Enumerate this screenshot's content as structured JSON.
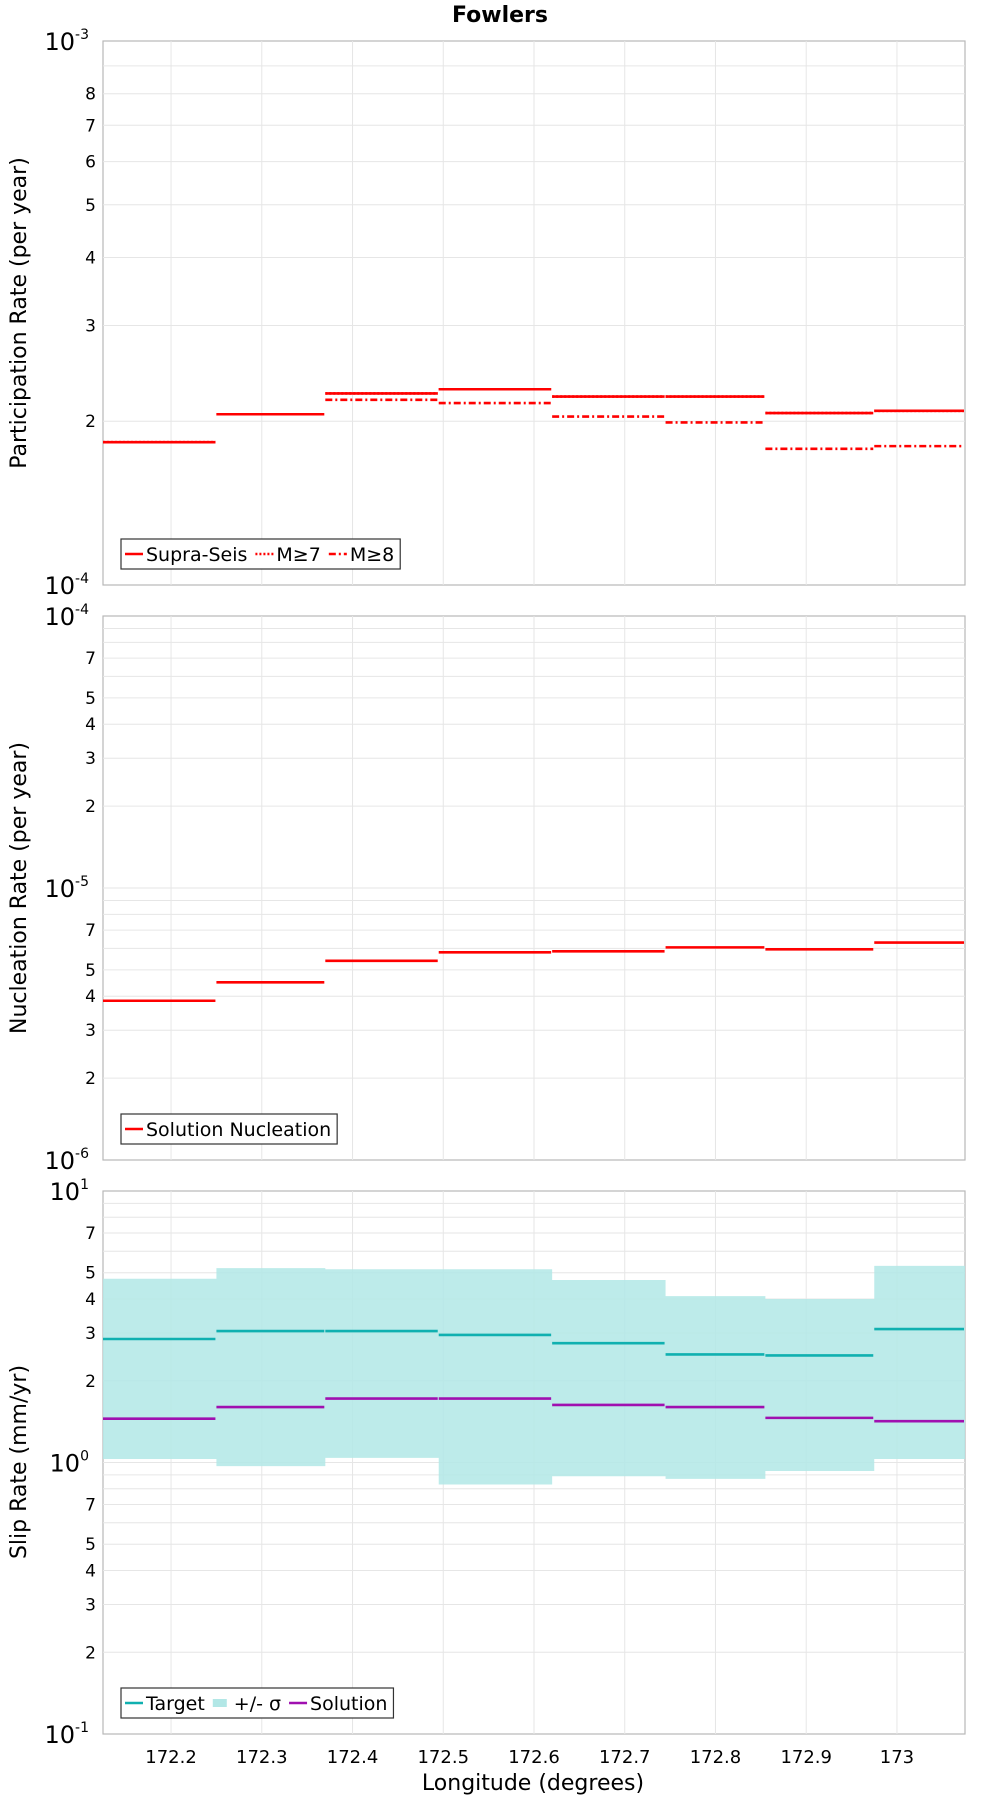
{
  "title": "Fowlers",
  "x_axis": {
    "label": "Longitude (degrees)",
    "ticks": [
      172.2,
      172.3,
      172.4,
      172.5,
      172.6,
      172.7,
      172.8,
      172.9,
      173.0
    ],
    "tick_labels": [
      "172.2",
      "172.3",
      "172.4",
      "172.5",
      "172.6",
      "172.7",
      "172.8",
      "172.9",
      "173"
    ],
    "range": [
      172.125,
      173.075
    ]
  },
  "chart_data": [
    {
      "type": "line",
      "step": true,
      "scale": "log",
      "ylabel": "Participation Rate (per year)",
      "ylim": [
        0.0001,
        0.001
      ],
      "decade_labels": [
        {
          "base": "10",
          "exp": "-4"
        },
        {
          "base": "10",
          "exp": "-3"
        }
      ],
      "minor_ticks": [
        2,
        3,
        4,
        5,
        6,
        7,
        8
      ],
      "grid": true,
      "legend": "bottom-left",
      "bins": [
        [
          172.125,
          172.25
        ],
        [
          172.25,
          172.37
        ],
        [
          172.37,
          172.495
        ],
        [
          172.495,
          172.62
        ],
        [
          172.62,
          172.745
        ],
        [
          172.745,
          172.855
        ],
        [
          172.855,
          172.975
        ],
        [
          172.975,
          173.075
        ]
      ],
      "series": [
        {
          "name": "Supra-Seis",
          "style": "solid",
          "color": "#ff0000",
          "values": [
            0.000183,
            0.000206,
            0.000225,
            0.000229,
            0.000222,
            0.000222,
            0.000207,
            0.000209
          ]
        },
        {
          "name": "M≥7",
          "style": "dotted",
          "color": "#ff0000",
          "values": [
            0.000183,
            0.000206,
            0.000225,
            0.000229,
            0.000222,
            0.000222,
            0.000207,
            0.000209
          ]
        },
        {
          "name": "M≥8",
          "style": "dashdot",
          "color": "#ff0000",
          "values": [
            null,
            null,
            0.000219,
            0.000216,
            0.000204,
            0.000199,
            0.000178,
            0.00018
          ]
        }
      ]
    },
    {
      "type": "line",
      "step": true,
      "scale": "log",
      "ylabel": "Nucleation Rate (per year)",
      "ylim": [
        1e-06,
        0.0001
      ],
      "decade_labels": [
        {
          "base": "10",
          "exp": "-6"
        },
        {
          "base": "10",
          "exp": "-5"
        },
        {
          "base": "10",
          "exp": "-4"
        }
      ],
      "minor_ticks": [
        2,
        3,
        4,
        5,
        7
      ],
      "grid": true,
      "legend": "bottom-left",
      "bins": [
        [
          172.125,
          172.25
        ],
        [
          172.25,
          172.37
        ],
        [
          172.37,
          172.495
        ],
        [
          172.495,
          172.62
        ],
        [
          172.62,
          172.745
        ],
        [
          172.745,
          172.855
        ],
        [
          172.855,
          172.975
        ],
        [
          172.975,
          173.075
        ]
      ],
      "series": [
        {
          "name": "Solution Nucleation",
          "style": "solid",
          "color": "#ff0000",
          "values": [
            3.85e-06,
            4.5e-06,
            5.4e-06,
            5.8e-06,
            5.85e-06,
            6.05e-06,
            5.95e-06,
            6.3e-06
          ]
        }
      ]
    },
    {
      "type": "line",
      "step": true,
      "scale": "log",
      "ylabel": "Slip Rate (mm/yr)",
      "ylim": [
        0.1,
        10
      ],
      "decade_labels": [
        {
          "base": "10",
          "exp": "-1"
        },
        {
          "base": "10",
          "exp": "0"
        },
        {
          "base": "10",
          "exp": "1"
        }
      ],
      "minor_ticks": [
        2,
        3,
        4,
        5,
        7
      ],
      "grid": true,
      "legend": "bottom-left",
      "bins": [
        [
          172.125,
          172.25
        ],
        [
          172.25,
          172.37
        ],
        [
          172.37,
          172.495
        ],
        [
          172.495,
          172.62
        ],
        [
          172.62,
          172.745
        ],
        [
          172.745,
          172.855
        ],
        [
          172.855,
          172.975
        ],
        [
          172.975,
          173.075
        ]
      ],
      "series": [
        {
          "name": "Target",
          "style": "solid",
          "color": "#10b0b0",
          "values": [
            2.85,
            3.05,
            3.05,
            2.95,
            2.75,
            2.5,
            2.48,
            3.1
          ]
        },
        {
          "name": "+/- σ",
          "style": "band",
          "color": "#b2e7e6",
          "lower": [
            1.03,
            0.97,
            1.04,
            0.83,
            0.89,
            0.87,
            0.93,
            1.03
          ],
          "upper": [
            4.75,
            5.2,
            5.15,
            5.15,
            4.7,
            4.1,
            4.0,
            5.3
          ]
        },
        {
          "name": "Solution",
          "style": "solid",
          "color": "#a010b0",
          "values": [
            1.45,
            1.6,
            1.72,
            1.72,
            1.63,
            1.6,
            1.46,
            1.42
          ]
        }
      ]
    }
  ]
}
